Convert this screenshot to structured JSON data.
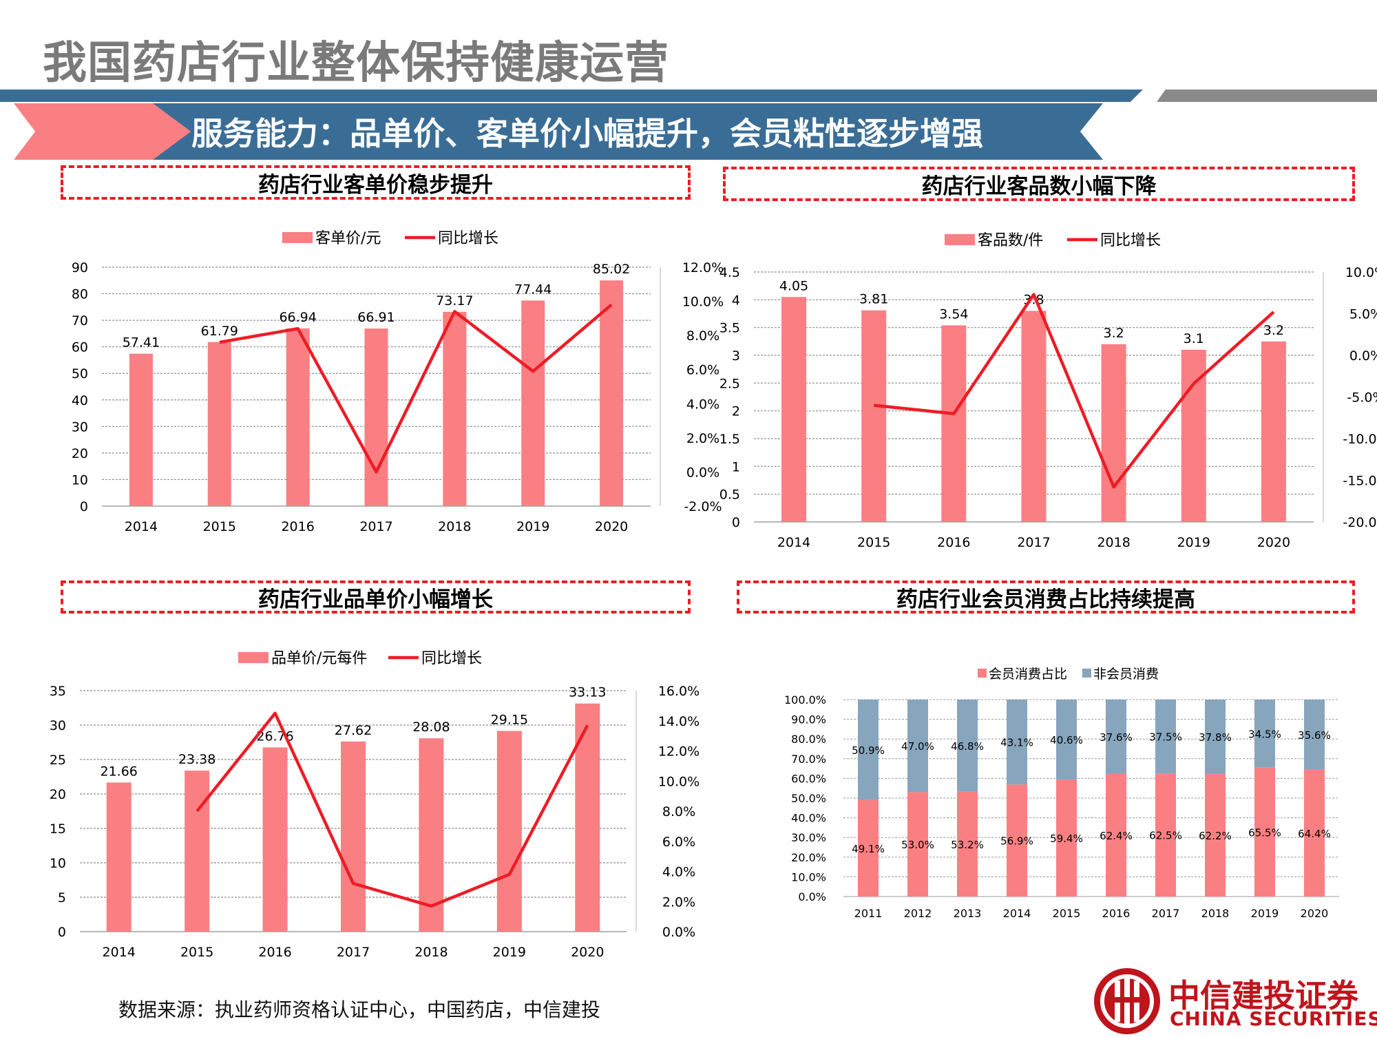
{
  "page": {
    "title": "我国药店行业整体保持健康运营",
    "banner": "服务能力：品单价、客单价小幅提升，会员粘性逐步增强",
    "source": "数据来源：执业药师资格认证中心，中国药店，中信建投",
    "logo_cn": "中信建投证券",
    "logo_en": "CHINA SECURITIES"
  },
  "sections": {
    "s1": "药店行业客单价稳步提升",
    "s2": "药店行业客品数小幅下降",
    "s3": "药店行业品单价小幅增长",
    "s4": "药店行业会员消费占比持续提高"
  },
  "colors": {
    "bar": "#fa7f83",
    "line": "#ee1c25",
    "blue": "#87a5bd",
    "brand": "#3a6d96",
    "accent": "#c0141c"
  },
  "chart_data": [
    {
      "type": "bar",
      "id": "c1",
      "categories": [
        "2014",
        "2015",
        "2016",
        "2017",
        "2018",
        "2019",
        "2020"
      ],
      "series": [
        {
          "name": "客单价/元",
          "type": "bar",
          "axis": "left",
          "values": [
            57.41,
            61.79,
            66.94,
            66.91,
            73.17,
            77.44,
            85.02
          ],
          "labels": [
            "57.41",
            "61.79",
            "66.94",
            "66.91",
            "73.17",
            "77.44",
            "85.02"
          ]
        },
        {
          "name": "同比增长",
          "type": "line",
          "axis": "right",
          "values": [
            null,
            7.6,
            8.4,
            0.0,
            9.4,
            5.9,
            9.8
          ]
        }
      ],
      "ylim": [
        0,
        90
      ],
      "yticks": [
        "0",
        "10",
        "20",
        "30",
        "40",
        "50",
        "60",
        "70",
        "80",
        "90"
      ],
      "y2lim": [
        -2,
        12
      ],
      "y2ticks": [
        "-2.0%",
        "0.0%",
        "2.0%",
        "4.0%",
        "6.0%",
        "8.0%",
        "10.0%",
        "12.0%"
      ],
      "grid": true,
      "legend": "top"
    },
    {
      "type": "bar",
      "id": "c2",
      "categories": [
        "2014",
        "2015",
        "2016",
        "2017",
        "2018",
        "2019",
        "2020"
      ],
      "series": [
        {
          "name": "客品数/件",
          "type": "bar",
          "axis": "left",
          "values": [
            4.05,
            3.81,
            3.54,
            3.8,
            3.2,
            3.1,
            3.25
          ],
          "labels": [
            "4.05",
            "3.81",
            "3.54",
            "3.8",
            "3.2",
            "3.1",
            "3.2"
          ]
        },
        {
          "name": "同比增长",
          "type": "line",
          "axis": "right",
          "values": [
            null,
            -6.0,
            -7.0,
            7.3,
            -15.8,
            -3.4,
            5.2
          ]
        }
      ],
      "ylim": [
        0,
        4.5
      ],
      "yticks": [
        "0",
        "0.5",
        "1",
        "1.5",
        "2",
        "2.5",
        "3",
        "3.5",
        "4",
        "4.5"
      ],
      "y2lim": [
        -20,
        10
      ],
      "y2ticks": [
        "-20.0%",
        "-15.0%",
        "-10.0%",
        "-5.0%",
        "0.0%",
        "5.0%",
        "10.0%"
      ],
      "grid": true,
      "legend": "top"
    },
    {
      "type": "bar",
      "id": "c3",
      "categories": [
        "2014",
        "2015",
        "2016",
        "2017",
        "2018",
        "2019",
        "2020"
      ],
      "series": [
        {
          "name": "品单价/元每件",
          "type": "bar",
          "axis": "left",
          "values": [
            21.66,
            23.38,
            26.76,
            27.62,
            28.08,
            29.15,
            33.13
          ],
          "labels": [
            "21.66",
            "23.38",
            "26.76",
            "27.62",
            "28.08",
            "29.15",
            "33.13"
          ]
        },
        {
          "name": "同比增长",
          "type": "line",
          "axis": "right",
          "values": [
            null,
            8.0,
            14.5,
            3.2,
            1.7,
            3.8,
            13.7
          ]
        }
      ],
      "ylim": [
        0,
        35
      ],
      "yticks": [
        "0",
        "5",
        "10",
        "15",
        "20",
        "25",
        "30",
        "35"
      ],
      "y2lim": [
        0,
        16
      ],
      "y2ticks": [
        "0.0%",
        "2.0%",
        "4.0%",
        "6.0%",
        "8.0%",
        "10.0%",
        "12.0%",
        "14.0%",
        "16.0%"
      ],
      "grid": true,
      "legend": "top"
    },
    {
      "type": "bar",
      "stacked": true,
      "id": "c4",
      "categories": [
        "2011",
        "2012",
        "2013",
        "2014",
        "2015",
        "2016",
        "2017",
        "2018",
        "2019",
        "2020"
      ],
      "series": [
        {
          "name": "会员消费占比",
          "values": [
            49.1,
            53.0,
            53.2,
            56.9,
            59.4,
            62.4,
            62.5,
            62.2,
            65.5,
            64.4
          ],
          "labels": [
            "49.1%",
            "53.0%",
            "53.2%",
            "56.9%",
            "59.4%",
            "62.4%",
            "62.5%",
            "62.2%",
            "65.5%",
            "64.4%"
          ]
        },
        {
          "name": "非会员消费",
          "values": [
            50.9,
            47.0,
            46.8,
            43.1,
            40.6,
            37.6,
            37.5,
            37.8,
            34.5,
            35.6
          ],
          "labels": [
            "50.9%",
            "47.0%",
            "46.8%",
            "43.1%",
            "40.6%",
            "37.6%",
            "37.5%",
            "37.8%",
            "34.5%",
            "35.6%"
          ]
        }
      ],
      "ylim": [
        0,
        100
      ],
      "yticks": [
        "0.0%",
        "10.0%",
        "20.0%",
        "30.0%",
        "40.0%",
        "50.0%",
        "60.0%",
        "70.0%",
        "80.0%",
        "90.0%",
        "100.0%"
      ],
      "grid": true,
      "legend": "top"
    }
  ]
}
